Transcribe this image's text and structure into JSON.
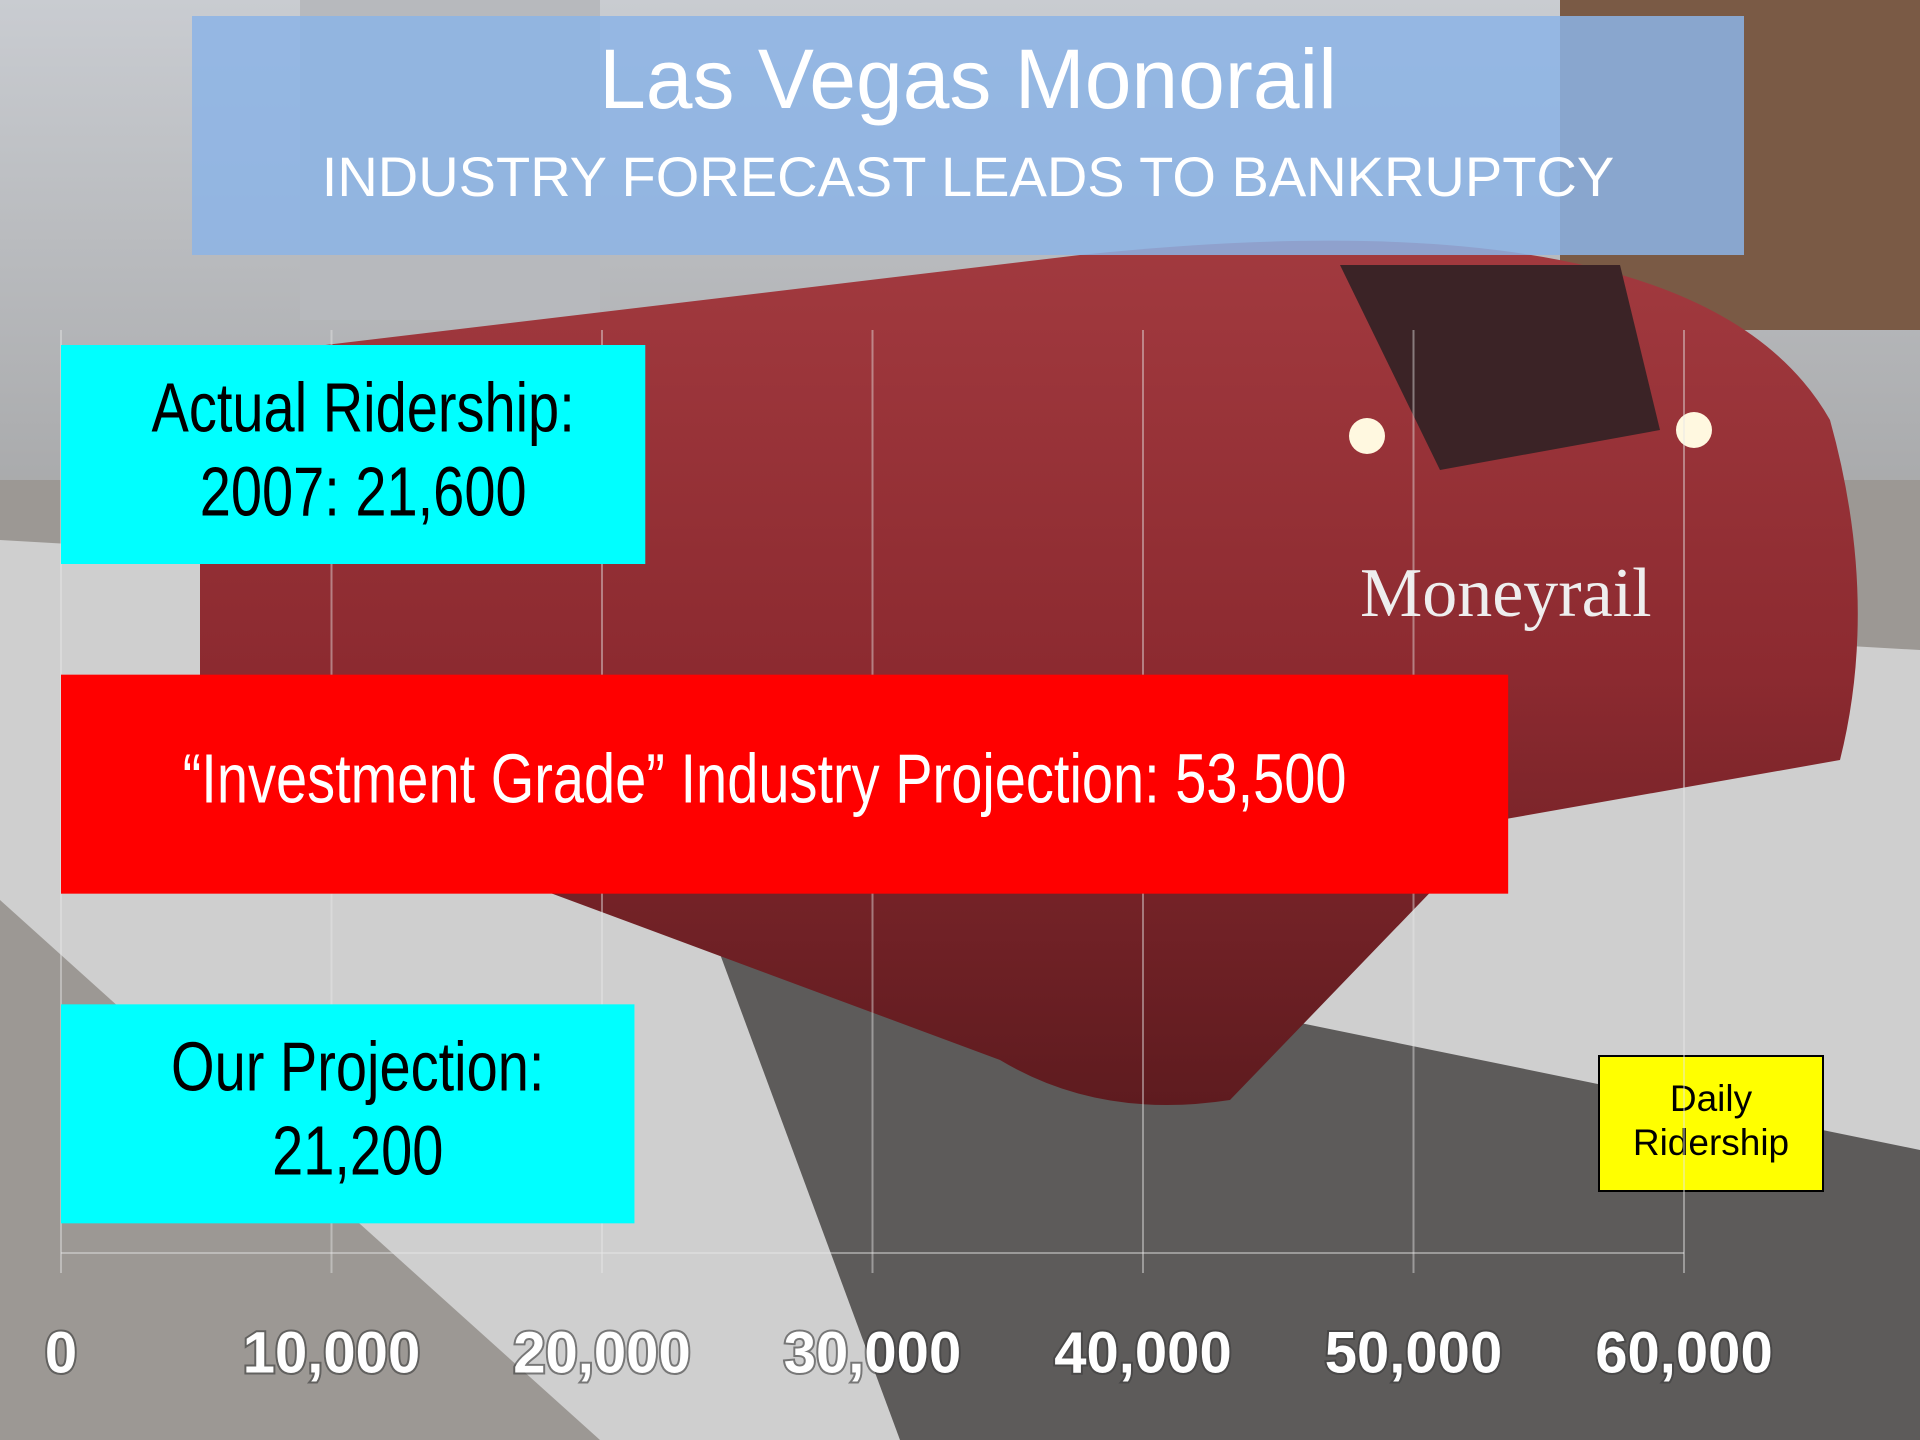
{
  "chart_data": {
    "type": "barh",
    "title": "Las Vegas Monorail",
    "subtitle": "INDUSTRY FORECAST LEADS TO BANKRUPTCY",
    "categories": [
      null,
      null,
      null
    ],
    "values": [
      21600,
      53500,
      21200
    ],
    "value_labels": [
      "Actual Ridership:\n2007: 21,600",
      "“Investment Grade” Industry Projection: 53,500",
      "Our Projection:\n21,200"
    ],
    "colors": [
      "#00ffff",
      "#ff0000",
      "#00ffff"
    ],
    "label_colors": [
      "#000000",
      "#ffffff",
      "#000000"
    ],
    "annotation": "Daily\nRidership",
    "xlim": [
      0,
      60000
    ],
    "xticks": [
      0,
      {
        "value": 10000,
        "label": "10,000"
      },
      {
        "value": 20000,
        "label": "20,000"
      },
      {
        "value": 30000,
        "label": "30,000"
      },
      {
        "value": 40000,
        "label": "40,000"
      },
      {
        "value": 50000,
        "label": "50,000"
      },
      {
        "value": 60000,
        "label": "60,000"
      }
    ],
    "grid": true
  }
}
